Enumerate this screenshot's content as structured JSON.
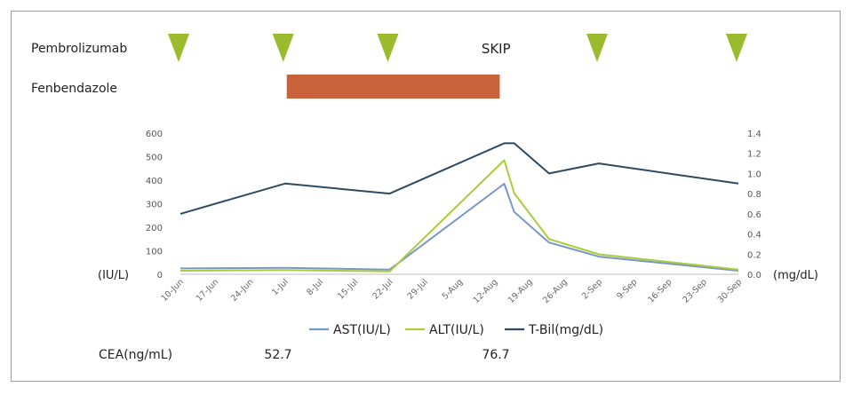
{
  "timeline": {
    "pembrolizumab_label": "Pembrolizumab",
    "fenbendazole_label": "Fenbendazole",
    "skip_label": "SKIP",
    "pembrolizumab_doses": [
      "10-Jun",
      "1-Jul",
      "22-Jul",
      "2-Sep",
      "30-Sep"
    ],
    "skip_date": "12-Aug",
    "fenbendazole_period": [
      "1-Jul",
      "14-Aug"
    ],
    "triangle_color": "#9bbb2e",
    "bar_color": "#c9623a"
  },
  "chart_data": {
    "type": "line",
    "x_ticks": [
      "10-Jun",
      "17-Jun",
      "24-Jun",
      "1-Jul",
      "8-Jul",
      "15-Jul",
      "22-Jul",
      "29-Jul",
      "5-Aug",
      "12-Aug",
      "19-Aug",
      "26-Aug",
      "2-Sep",
      "9-Sep",
      "16-Sep",
      "23-Sep",
      "30-Sep"
    ],
    "y_left": {
      "label": "(IU/L)",
      "range": [
        0,
        600
      ],
      "ticks": [
        "0",
        "100",
        "200",
        "300",
        "400",
        "500",
        "600"
      ]
    },
    "y_right": {
      "label": "(mg/dL)",
      "range": [
        0,
        1.4
      ],
      "ticks": [
        "0.0",
        "0.2",
        "0.4",
        "0.6",
        "0.8",
        "1.0",
        "1.2",
        "1.4"
      ]
    },
    "series": [
      {
        "name": "AST(IU/L)",
        "axis": "left",
        "color": "#7896c8",
        "points": [
          [
            "10-Jun",
            25
          ],
          [
            "1-Jul",
            27
          ],
          [
            "22-Jul",
            20
          ],
          [
            "14-Aug",
            385
          ],
          [
            "16-Aug",
            265
          ],
          [
            "23-Aug",
            135
          ],
          [
            "2-Sep",
            75
          ],
          [
            "30-Sep",
            15
          ]
        ]
      },
      {
        "name": "ALT(IU/L)",
        "axis": "left",
        "color": "#a9cc3a",
        "points": [
          [
            "10-Jun",
            15
          ],
          [
            "1-Jul",
            18
          ],
          [
            "22-Jul",
            12
          ],
          [
            "14-Aug",
            485
          ],
          [
            "16-Aug",
            345
          ],
          [
            "23-Aug",
            150
          ],
          [
            "2-Sep",
            85
          ],
          [
            "30-Sep",
            20
          ]
        ]
      },
      {
        "name": "T-Bil(mg/dL)",
        "axis": "right",
        "color": "#2e4a62",
        "points": [
          [
            "10-Jun",
            0.6
          ],
          [
            "1-Jul",
            0.9
          ],
          [
            "22-Jul",
            0.8
          ],
          [
            "14-Aug",
            1.3
          ],
          [
            "16-Aug",
            1.3
          ],
          [
            "23-Aug",
            1.0
          ],
          [
            "2-Sep",
            1.1
          ],
          [
            "30-Sep",
            0.9
          ]
        ]
      }
    ],
    "grid": false,
    "legend": "bottom"
  },
  "cea": {
    "label": "CEA(ng/mL)",
    "values": [
      {
        "date": "1-Jul",
        "value": "52.7"
      },
      {
        "date": "12-Aug",
        "value": "76.7"
      }
    ]
  }
}
